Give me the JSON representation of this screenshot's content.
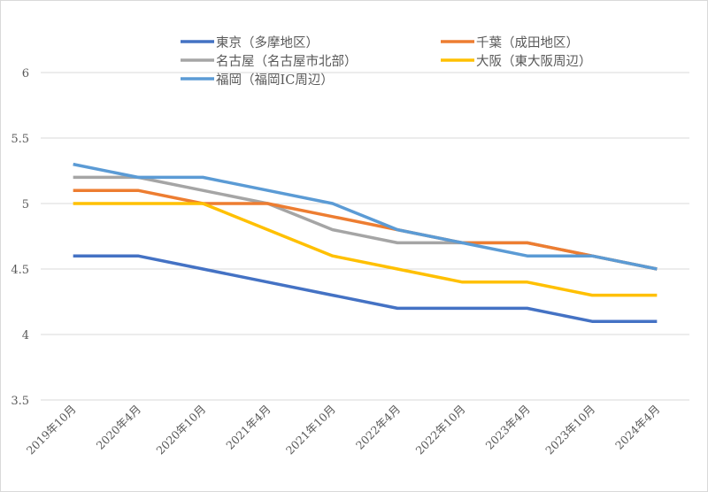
{
  "chart_data": {
    "type": "line",
    "title": "",
    "xlabel": "",
    "ylabel": "",
    "ylim": [
      3.5,
      6
    ],
    "yticks": [
      "3.5",
      "4",
      "4.5",
      "5",
      "5.5",
      "6"
    ],
    "grid": true,
    "legend_position": "top",
    "categories": [
      "2019年10月",
      "2020年4月",
      "2020年10月",
      "2021年4月",
      "2021年10月",
      "2022年4月",
      "2022年10月",
      "2023年4月",
      "2023年10月",
      "2024年4月"
    ],
    "series": [
      {
        "name": "東京（多摩地区）",
        "color": "#4472C4",
        "values": [
          4.6,
          4.6,
          4.5,
          4.4,
          4.3,
          4.2,
          4.2,
          4.2,
          4.1,
          4.1
        ]
      },
      {
        "name": "千葉（成田地区）",
        "color": "#ED7D31",
        "values": [
          5.1,
          5.1,
          5.0,
          5.0,
          4.9,
          4.8,
          4.7,
          4.7,
          4.6,
          4.5
        ]
      },
      {
        "name": "名古屋（名古屋市北部）",
        "color": "#A5A5A5",
        "values": [
          5.2,
          5.2,
          5.1,
          5.0,
          4.8,
          4.7,
          4.7,
          4.7,
          4.6,
          4.5
        ]
      },
      {
        "name": "大阪（東大阪周辺）",
        "color": "#FFC000",
        "values": [
          5.0,
          5.0,
          5.0,
          4.8,
          4.6,
          4.5,
          4.4,
          4.4,
          4.3,
          4.3
        ]
      },
      {
        "name": "福岡（福岡IC周辺）",
        "color": "#5B9BD5",
        "values": [
          5.3,
          5.2,
          5.2,
          5.1,
          5.0,
          4.8,
          4.7,
          4.6,
          4.6,
          4.5
        ]
      }
    ]
  }
}
